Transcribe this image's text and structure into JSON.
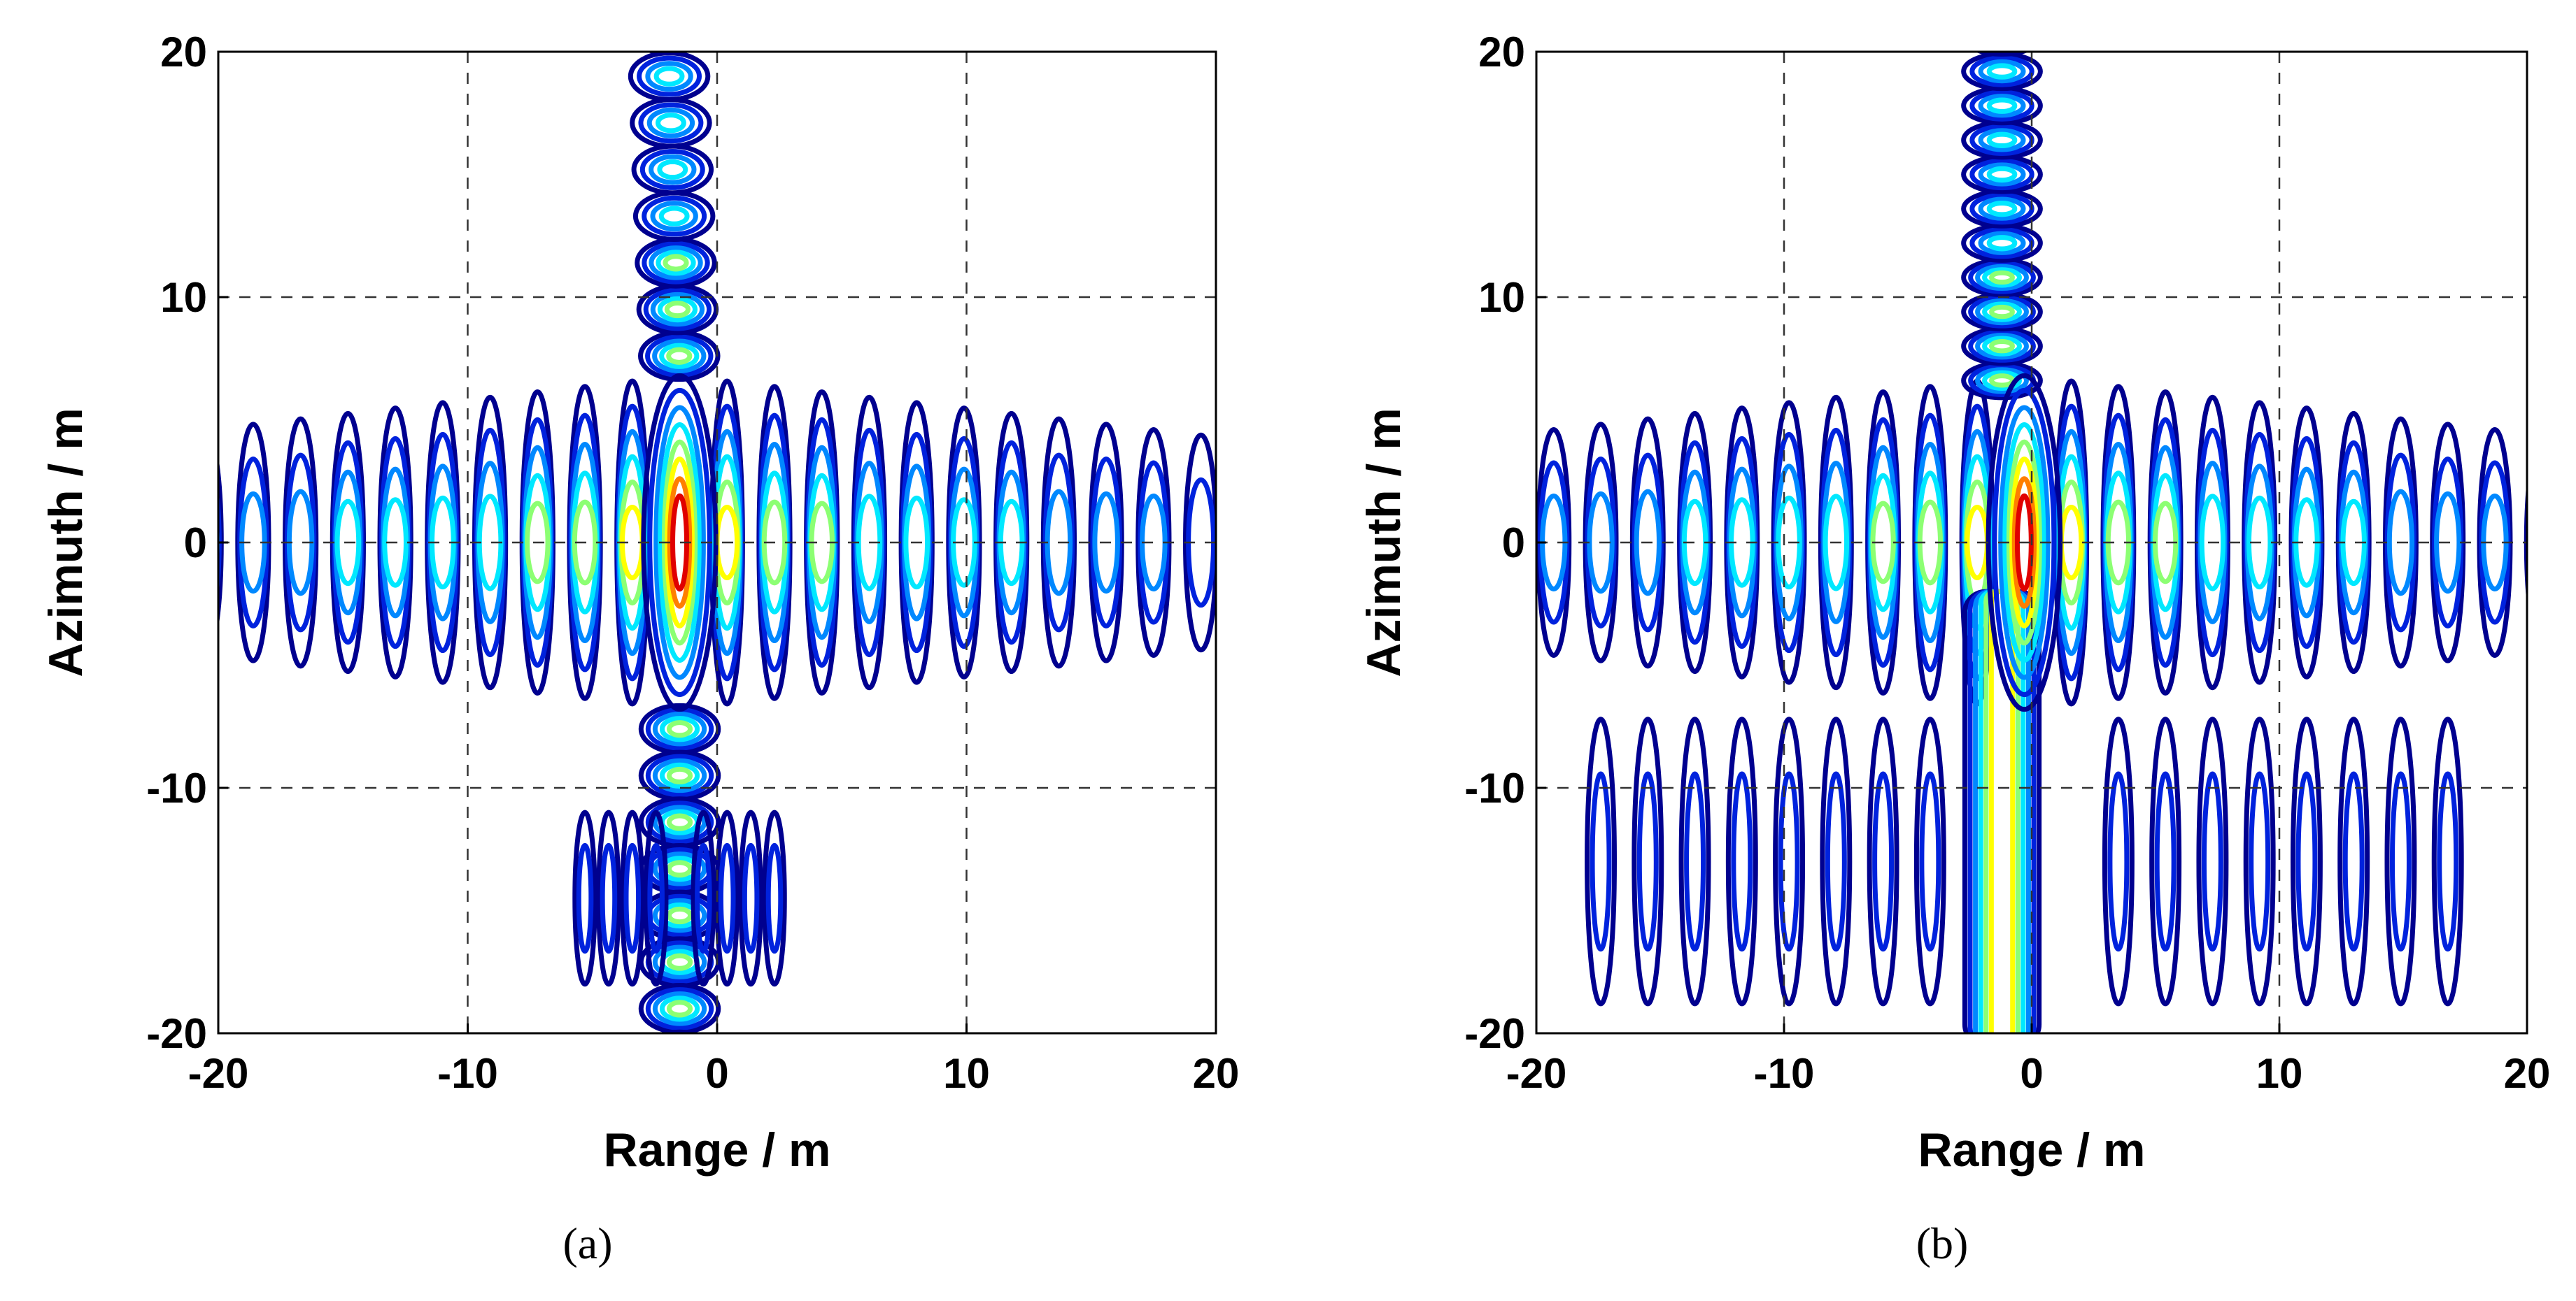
{
  "chart_data": [
    {
      "type": "contour",
      "panel_label": "(a)",
      "xlabel": "Range / m",
      "ylabel": "Azimuth / m",
      "xlim": [
        -20,
        20
      ],
      "ylim": [
        -20,
        20
      ],
      "xticks": [
        -20,
        -10,
        0,
        10,
        20
      ],
      "yticks": [
        -20,
        -10,
        0,
        10,
        20
      ],
      "grid": true,
      "peak_center": [
        -1.5,
        0
      ],
      "horizontal_sidelobe_rows": [
        -0.5,
        0.5
      ],
      "horizontal_extent_x": [
        -20,
        20
      ],
      "lobe_spacing_x": 1.9,
      "vertical_sidelobe_column_x": -1.5,
      "vertical_lobe_spacing_y": 1.9,
      "vertical_extent_y": [
        -20,
        20
      ],
      "contour_colors": [
        "#00008f",
        "#0022dd",
        "#0088ff",
        "#00e8ff",
        "#8cff73",
        "#ffff00",
        "#ff7f00",
        "#e00000"
      ]
    },
    {
      "type": "contour",
      "panel_label": "(b)",
      "xlabel": "Range / m",
      "ylabel": "Azimuth / m",
      "xlim": [
        -20,
        20
      ],
      "ylim": [
        -20,
        20
      ],
      "xticks": [
        -20,
        -10,
        0,
        10,
        20
      ],
      "yticks": [
        -20,
        -10,
        0,
        10,
        20
      ],
      "grid": true,
      "peak_center": [
        -0.3,
        0
      ],
      "horizontal_sidelobe_rows": [
        -0.5,
        0.5
      ],
      "horizontal_extent_x": [
        -20,
        20
      ],
      "lobe_spacing_x": 1.9,
      "vertical_sidelobe_column_x": -1.2,
      "vertical_lobe_spacing_y": 1.4,
      "vertical_extent_y": [
        -20,
        20
      ],
      "contour_colors": [
        "#00008f",
        "#0022dd",
        "#0088ff",
        "#00e8ff",
        "#8cff73",
        "#ffff00",
        "#ff7f00",
        "#e00000"
      ]
    }
  ]
}
